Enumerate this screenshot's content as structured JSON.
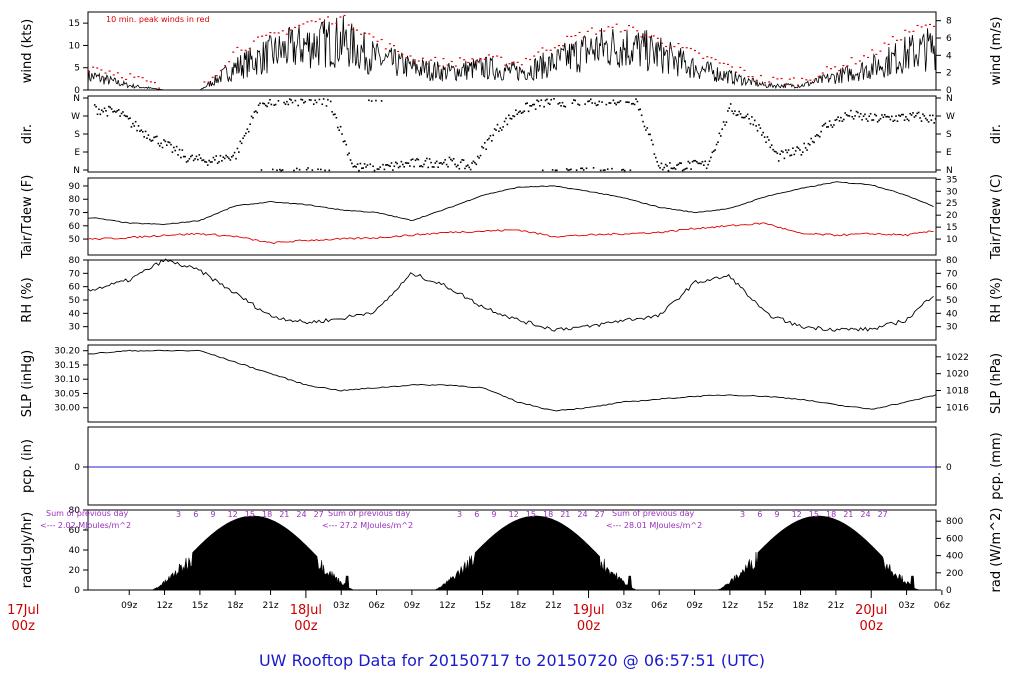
{
  "title": "UW Rooftop Data for 20150717  to  20150720 @ 06:57:51  (UTC)",
  "colors": {
    "title": "#1a1acc",
    "day_label": "#cc0000",
    "temp": "#000000",
    "dew": "#e00000",
    "peak": "#e00000",
    "pcp": "#2020d0",
    "solar_note": "#9a30c0"
  },
  "chart_data": [
    {
      "id": "wind",
      "type": "line",
      "ylabel_left": "wind (kts)",
      "ylabel_right": "wind (m/s)",
      "ylim": [
        0,
        17.5
      ],
      "yticks_left": [
        0,
        5,
        10,
        15
      ],
      "yticks_right": [
        "0",
        "2",
        "4",
        "6",
        "8"
      ],
      "yticks_right_values": [
        0,
        3.89,
        7.78,
        11.66,
        15.55
      ],
      "annotation": "10 min. peak winds in red",
      "x": [
        6,
        9,
        12,
        15,
        18,
        21,
        24,
        27,
        30,
        33,
        36,
        39,
        42,
        45,
        48,
        51,
        54,
        57,
        60,
        63,
        66,
        69,
        72,
        75,
        78,
        81
      ],
      "values": [
        3,
        1,
        0,
        0,
        5,
        8,
        10,
        11,
        7,
        5,
        4,
        5,
        4,
        6,
        9,
        10,
        8,
        5,
        3,
        1,
        1,
        3,
        5,
        8,
        10,
        9
      ],
      "peak": [
        5,
        3,
        0,
        0,
        9,
        12,
        15,
        16,
        11,
        7,
        6,
        7,
        6,
        10,
        13,
        14,
        11,
        8,
        5,
        2,
        2,
        5,
        8,
        13,
        15,
        13
      ]
    },
    {
      "id": "dir",
      "type": "scatter",
      "ylabel_left": "dir.",
      "ylabel_right": "dir.",
      "yticks_left": [
        "N",
        "E",
        "S",
        "W",
        "N"
      ],
      "yticks_right": [
        "N",
        "E",
        "S",
        "W",
        "N"
      ],
      "ylim": [
        0,
        360
      ],
      "x": [
        6,
        8,
        10,
        12,
        14,
        16,
        18,
        20,
        22,
        24,
        26,
        28,
        30,
        32,
        34,
        36,
        38,
        40,
        42,
        44,
        46,
        48,
        50,
        52,
        54,
        56,
        58,
        60,
        62,
        64,
        66,
        68,
        70,
        72,
        74,
        76,
        78,
        80
      ],
      "values": [
        310,
        290,
        200,
        130,
        60,
        50,
        80,
        340,
        345,
        350,
        345,
        20,
        5,
        30,
        40,
        45,
        20,
        200,
        300,
        340,
        345,
        350,
        355,
        355,
        20,
        25,
        30,
        310,
        250,
        70,
        100,
        220,
        280,
        260,
        265,
        270,
        250,
        250
      ]
    },
    {
      "id": "temp",
      "type": "line",
      "ylabel_left": "Tair/Tdew (F)",
      "ylabel_right": "Tair/Tdew (C)",
      "ylim": [
        38,
        96
      ],
      "yticks_left": [
        50,
        60,
        70,
        80,
        90
      ],
      "yticks_right": [
        "10",
        "15",
        "20",
        "25",
        "30",
        "35"
      ],
      "yticks_right_values": [
        50,
        59,
        68,
        77,
        86,
        95
      ],
      "series": [
        {
          "key": "tair",
          "x": [
            6,
            9,
            12,
            15,
            18,
            21,
            24,
            27,
            30,
            33,
            36,
            39,
            42,
            45,
            48,
            51,
            54,
            57,
            60,
            63,
            66,
            69,
            72,
            75,
            78,
            81
          ],
          "values": [
            66,
            62,
            61,
            64,
            75,
            78,
            76,
            72,
            70,
            64,
            73,
            83,
            89,
            90,
            86,
            81,
            74,
            70,
            73,
            82,
            88,
            93,
            91,
            83,
            72,
            67
          ]
        },
        {
          "key": "tdew",
          "x": [
            6,
            9,
            12,
            15,
            18,
            21,
            24,
            27,
            30,
            33,
            36,
            39,
            42,
            45,
            48,
            51,
            54,
            57,
            60,
            63,
            66,
            69,
            72,
            75,
            78,
            81
          ],
          "values": [
            50,
            51,
            53,
            54,
            52,
            47,
            49,
            50,
            51,
            53,
            55,
            56,
            57,
            52,
            53,
            54,
            55,
            58,
            60,
            62,
            54,
            53,
            54,
            53,
            57,
            59
          ]
        }
      ]
    },
    {
      "id": "rh",
      "type": "line",
      "ylabel_left": "RH (%)",
      "ylabel_right": "RH (%)",
      "ylim": [
        20,
        80
      ],
      "yticks_left": [
        30,
        40,
        50,
        60,
        70,
        80
      ],
      "yticks_right": [
        "30",
        "40",
        "50",
        "60",
        "70",
        "80"
      ],
      "x": [
        6,
        9,
        12,
        15,
        18,
        21,
        24,
        27,
        30,
        33,
        36,
        39,
        42,
        45,
        48,
        51,
        54,
        57,
        60,
        63,
        66,
        69,
        72,
        75,
        78,
        81
      ],
      "values": [
        58,
        65,
        80,
        72,
        55,
        38,
        33,
        36,
        42,
        70,
        60,
        45,
        35,
        28,
        30,
        35,
        38,
        63,
        68,
        40,
        30,
        28,
        28,
        35,
        60,
        80
      ]
    },
    {
      "id": "slp",
      "type": "line",
      "ylabel_left": "SLP (inHg)",
      "ylabel_right": "SLP (hPa)",
      "ylim": [
        29.95,
        30.22
      ],
      "yticks_left": [
        30.0,
        30.05,
        30.1,
        30.15,
        30.2
      ],
      "yticks_left_labels": [
        "30.00",
        "30.05",
        "30.10",
        "30.15",
        "30.20"
      ],
      "yticks_right": [
        "1016",
        "1018",
        "1020",
        "1022"
      ],
      "yticks_right_values": [
        30.0014,
        30.0605,
        30.1195,
        30.1786
      ],
      "x": [
        6,
        9,
        12,
        15,
        18,
        21,
        24,
        27,
        30,
        33,
        36,
        39,
        42,
        45,
        48,
        51,
        54,
        57,
        60,
        63,
        66,
        69,
        72,
        75,
        78,
        81
      ],
      "values": [
        30.19,
        30.2,
        30.2,
        30.2,
        30.16,
        30.12,
        30.08,
        30.06,
        30.07,
        30.08,
        30.08,
        30.07,
        30.02,
        29.99,
        30.0,
        30.02,
        30.03,
        30.04,
        30.045,
        30.04,
        30.03,
        30.01,
        29.995,
        30.02,
        30.05,
        30.07
      ]
    },
    {
      "id": "pcp",
      "type": "line",
      "ylabel_left": "pcp. (in)",
      "ylabel_right": "pcp. (mm)",
      "yticks_left": [
        "0"
      ],
      "yticks_right": [
        "0"
      ],
      "values": [
        0
      ]
    },
    {
      "id": "rad",
      "type": "area",
      "ylabel_left": "rad(Lgly/hr)",
      "ylabel_right": "rad (W/m^2)",
      "ylim": [
        0,
        80
      ],
      "yticks_left": [
        0,
        20,
        40,
        60,
        80
      ],
      "yticks_right": [
        "0",
        "200",
        "400",
        "600",
        "800"
      ],
      "yticks_right_values": [
        0,
        17.2,
        34.4,
        51.6,
        68.8
      ],
      "day_peaks": [
        74,
        74,
        74
      ],
      "notes": [
        {
          "line1": "Sum of previous day",
          "line2": "<--- 2.02 MJoules/m^2"
        },
        {
          "line1": "Sum of previous day",
          "line2": "<--- 27.2 MJoules/m^2"
        },
        {
          "line1": "Sum of previous day",
          "line2": "<--- 28.01 MJoules/m^2"
        }
      ],
      "hour_marks": [
        "3",
        "6",
        "9",
        "12",
        "15",
        "18",
        "21",
        "24",
        "27"
      ]
    }
  ],
  "x_axis": {
    "x_start_hour": 5.5,
    "x_end_hour": 77.5,
    "ticks": [
      {
        "hour": 9,
        "label": "09z"
      },
      {
        "hour": 12,
        "label": "12z"
      },
      {
        "hour": 15,
        "label": "15z"
      },
      {
        "hour": 18,
        "label": "18z"
      },
      {
        "hour": 21,
        "label": "21z"
      },
      {
        "hour": 27,
        "label": "03z"
      },
      {
        "hour": 30,
        "label": "06z"
      },
      {
        "hour": 33,
        "label": "09z"
      },
      {
        "hour": 36,
        "label": "12z"
      },
      {
        "hour": 39,
        "label": "15z"
      },
      {
        "hour": 42,
        "label": "18z"
      },
      {
        "hour": 45,
        "label": "21z"
      },
      {
        "hour": 51,
        "label": "03z"
      },
      {
        "hour": 54,
        "label": "06z"
      },
      {
        "hour": 57,
        "label": "09z"
      },
      {
        "hour": 60,
        "label": "12z"
      },
      {
        "hour": 63,
        "label": "15z"
      },
      {
        "hour": 66,
        "label": "18z"
      },
      {
        "hour": 69,
        "label": "21z"
      },
      {
        "hour": 75,
        "label": "03z"
      },
      {
        "hour": 78,
        "label": "06z"
      }
    ],
    "day_labels": [
      {
        "hour": 0,
        "line1": "17Jul",
        "line2": "00z"
      },
      {
        "hour": 24,
        "line1": "18Jul",
        "line2": "00z"
      },
      {
        "hour": 48,
        "line1": "19Jul",
        "line2": "00z"
      },
      {
        "hour": 72,
        "line1": "20Jul",
        "line2": "00z"
      }
    ]
  }
}
